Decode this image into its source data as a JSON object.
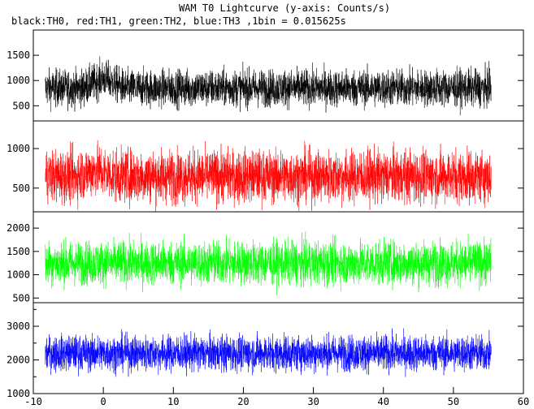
{
  "chart_data": {
    "type": "line",
    "title": "WAM T0 Lightcurve (y-axis: Counts/s)",
    "subtitle": "black:TH0, red:TH1, green:TH2, blue:TH3 ,1bin = 0.015625s",
    "x_range": [
      -10,
      60
    ],
    "x_ticks": [
      -10,
      0,
      10,
      20,
      30,
      40,
      50,
      60
    ],
    "data_x_range": [
      -8.3,
      55.4
    ],
    "panels": [
      {
        "series": "TH0",
        "color": "#000000",
        "ylim": [
          200,
          2000
        ],
        "y_ticks": [
          500,
          1000,
          1500
        ],
        "mean": 850,
        "spread": 330,
        "early_bump": {
          "x_start": -3,
          "x_end": 3,
          "extra": 200
        }
      },
      {
        "series": "TH1",
        "color": "#ff0000",
        "ylim": [
          200,
          1350
        ],
        "y_ticks": [
          500,
          1000
        ],
        "mean": 650,
        "spread": 300,
        "early_bump": {
          "x_start": -4,
          "x_end": 2,
          "extra": 80
        }
      },
      {
        "series": "TH2",
        "color": "#00ff00",
        "ylim": [
          400,
          2350
        ],
        "y_ticks": [
          500,
          1000,
          1500,
          2000
        ],
        "mean": 1250,
        "spread": 420,
        "early_bump": null
      },
      {
        "series": "TH3",
        "color": "#0000ff",
        "ylim": [
          1000,
          3700
        ],
        "y_ticks": [
          1000,
          2000,
          3000
        ],
        "minor_ticks": [
          1500,
          2500,
          3500
        ],
        "mean": 2200,
        "spread": 480,
        "early_bump": null
      }
    ]
  }
}
